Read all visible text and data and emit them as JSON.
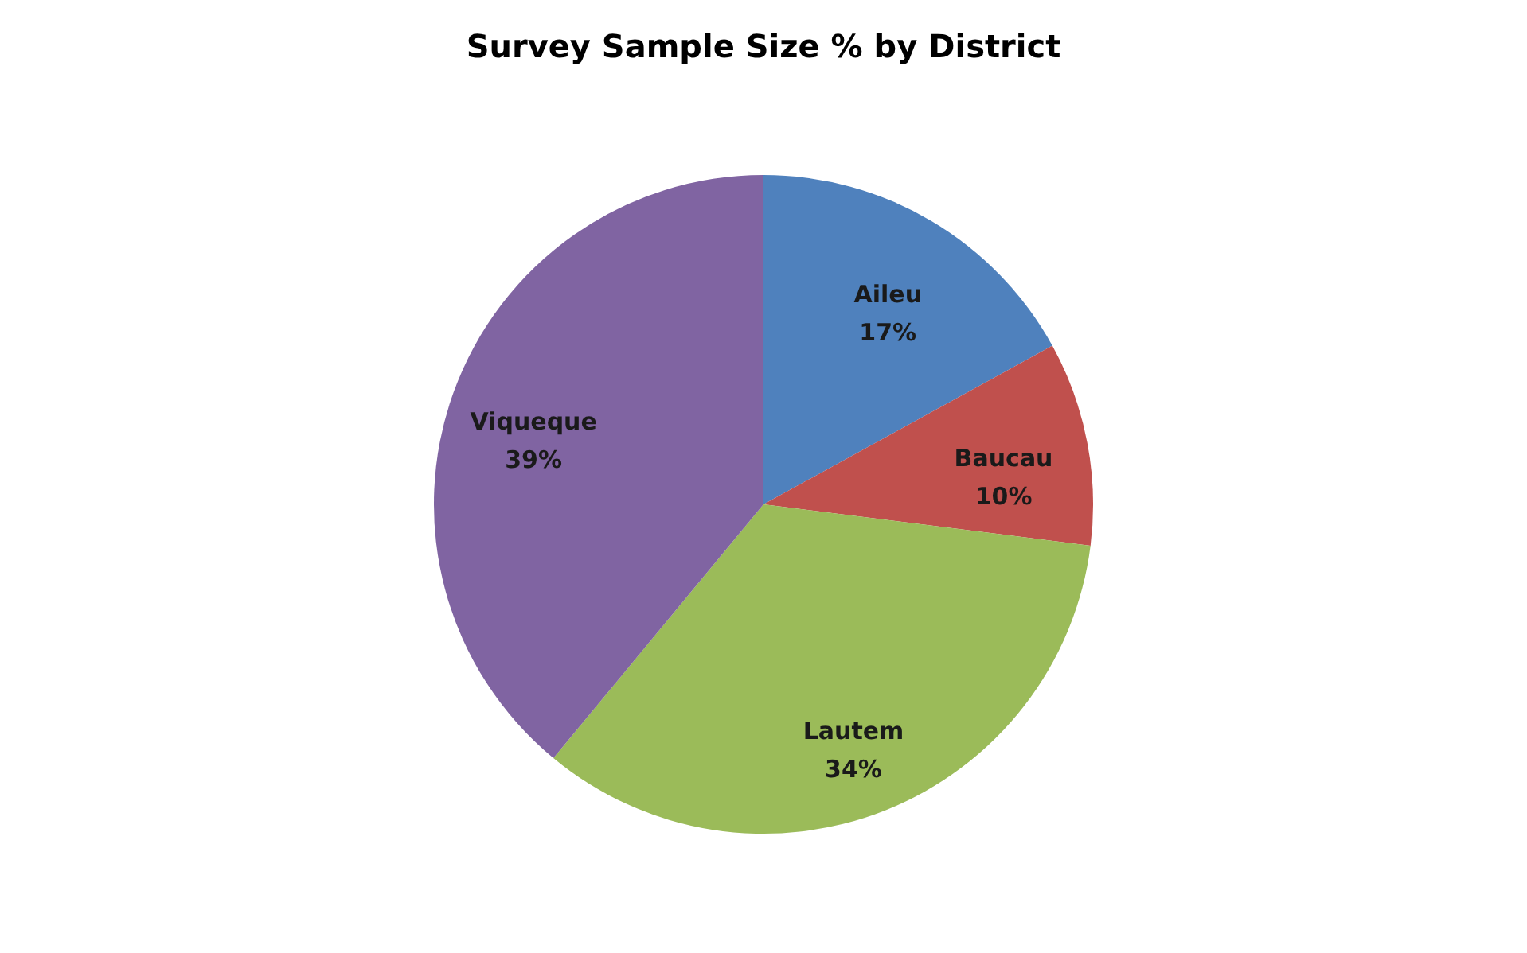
{
  "chart_data": {
    "type": "pie",
    "title": "Survey Sample Size % by District",
    "categories": [
      "Aileu",
      "Baucau",
      "Lautem",
      "Viqueque"
    ],
    "values": [
      17,
      10,
      34,
      39
    ],
    "value_labels": [
      "17%",
      "10%",
      "34%",
      "39%"
    ],
    "colors": [
      "#4f81bd",
      "#c0504d",
      "#9bbb59",
      "#8064a2"
    ],
    "legend": false
  }
}
